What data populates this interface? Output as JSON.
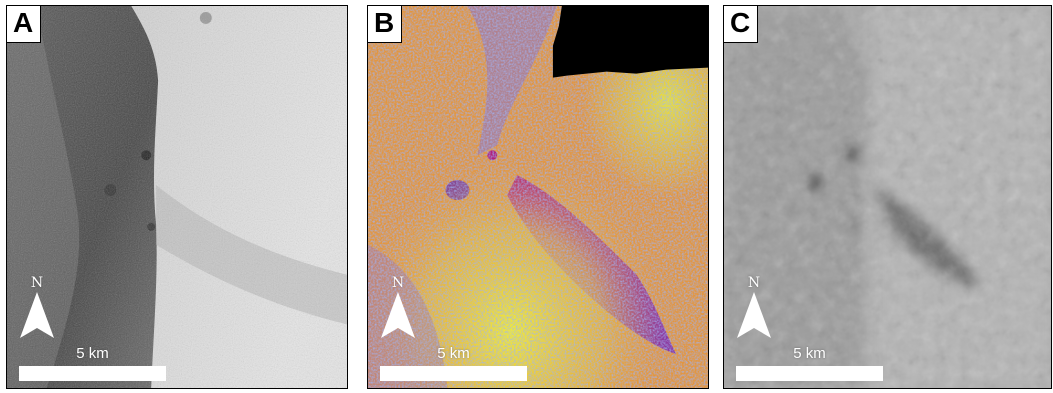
{
  "panels": [
    {
      "letter": "A",
      "north_label": "N",
      "scale_label": "5 km"
    },
    {
      "letter": "B",
      "north_label": "N",
      "scale_label": "5 km"
    },
    {
      "letter": "C",
      "north_label": "N",
      "scale_label": "5 km"
    }
  ],
  "colors": {
    "panel_a_dark": "#4a4a4a",
    "panel_a_light": "#d8d8d8",
    "panel_b_orange": "#f0a030",
    "panel_b_magenta": "#b0207a",
    "panel_b_yellow": "#e8e040",
    "panel_b_blue": "#5a7fd0",
    "panel_c_gray": "#a8a8a8"
  }
}
